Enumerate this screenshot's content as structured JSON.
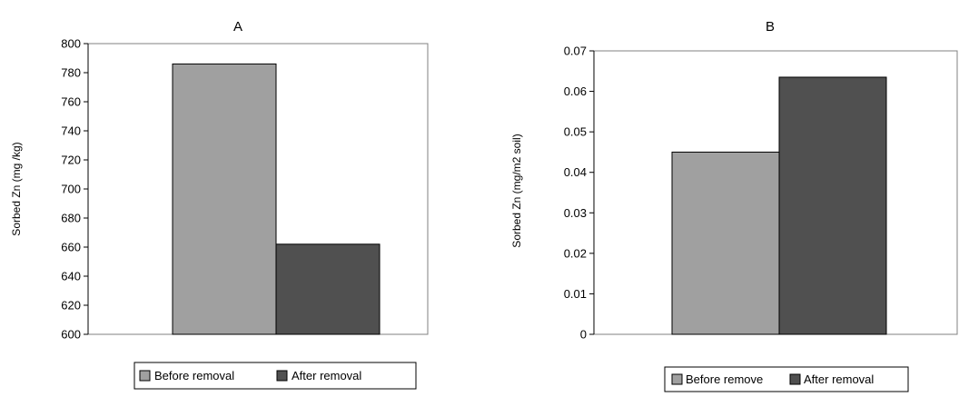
{
  "colors": {
    "before": "#a0a0a0",
    "after": "#505050",
    "axis": "#000000",
    "plot_bg": "#ffffff"
  },
  "chart_data": [
    {
      "type": "bar",
      "title": "A",
      "ylabel": "Sorbed Zn (mg /kg)",
      "xlabel": "",
      "ylim": [
        600,
        800
      ],
      "yticks": [
        "600",
        "620",
        "640",
        "660",
        "680",
        "700",
        "720",
        "740",
        "760",
        "780",
        "800"
      ],
      "categories": [
        ""
      ],
      "series": [
        {
          "name": "Before removal",
          "values": [
            786
          ]
        },
        {
          "name": "After removal",
          "values": [
            662
          ]
        }
      ],
      "legend": {
        "placement": "bottom",
        "entries": [
          "Before removal",
          "After removal"
        ]
      },
      "grid": false
    },
    {
      "type": "bar",
      "title": "B",
      "ylabel": "Sorbed Zn (mg/m2 soil)",
      "xlabel": "",
      "ylim": [
        0,
        0.07
      ],
      "yticks": [
        "0",
        "0.01",
        "0.02",
        "0.03",
        "0.04",
        "0.05",
        "0.06",
        "0.07"
      ],
      "categories": [
        ""
      ],
      "series": [
        {
          "name": "Before remove",
          "values": [
            0.045
          ]
        },
        {
          "name": "After removal",
          "values": [
            0.0635
          ]
        }
      ],
      "legend": {
        "placement": "bottom",
        "entries": [
          "Before remove",
          "After removal"
        ]
      },
      "grid": false
    }
  ]
}
